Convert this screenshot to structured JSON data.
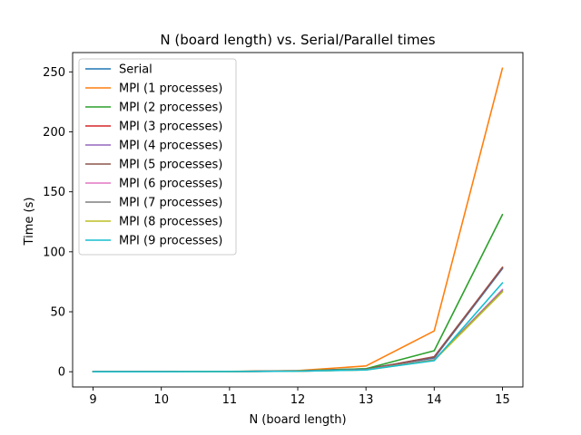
{
  "chart_data": {
    "type": "line",
    "title": "N (board length) vs. Serial/Parallel times",
    "xlabel": "N (board length)",
    "ylabel": "Time (s)",
    "x": [
      9,
      10,
      11,
      12,
      13,
      14,
      15
    ],
    "xticks": [
      "9",
      "10",
      "11",
      "12",
      "13",
      "14",
      "15"
    ],
    "yticks": [
      "0",
      "50",
      "100",
      "150",
      "200",
      "250"
    ],
    "xlim": [
      8.7,
      15.3
    ],
    "ylim": [
      -12.7,
      266.1
    ],
    "grid": false,
    "legend_position": "top-left",
    "series": [
      {
        "name": "Serial",
        "color": "#1f77b4",
        "values": [
          0.01,
          0.04,
          0.2,
          0.9,
          2.5,
          11.5,
          86
        ]
      },
      {
        "name": "MPI (1 processes)",
        "color": "#ff7f0e",
        "values": [
          0.02,
          0.1,
          0.3,
          1.0,
          4.8,
          34,
          253
        ]
      },
      {
        "name": "MPI (2 processes)",
        "color": "#2ca02c",
        "values": [
          0.01,
          0.05,
          0.2,
          0.7,
          2.5,
          17.5,
          131
        ]
      },
      {
        "name": "MPI (3 processes)",
        "color": "#d62728",
        "values": [
          0.01,
          0.04,
          0.2,
          0.6,
          1.9,
          12.5,
          87
        ]
      },
      {
        "name": "MPI (4 processes)",
        "color": "#9467bd",
        "values": [
          0.01,
          0.04,
          0.2,
          0.6,
          1.9,
          12.2,
          86.5
        ]
      },
      {
        "name": "MPI (5 processes)",
        "color": "#8c564b",
        "values": [
          0.01,
          0.04,
          0.2,
          0.6,
          1.9,
          12.3,
          86.8
        ]
      },
      {
        "name": "MPI (6 processes)",
        "color": "#e377c2",
        "values": [
          0.01,
          0.04,
          0.2,
          0.5,
          1.6,
          10.0,
          68.5
        ]
      },
      {
        "name": "MPI (7 processes)",
        "color": "#7f7f7f",
        "values": [
          0.01,
          0.04,
          0.2,
          0.5,
          1.6,
          9.8,
          67.5
        ]
      },
      {
        "name": "MPI (8 processes)",
        "color": "#bcbd22",
        "values": [
          0.01,
          0.04,
          0.2,
          0.5,
          1.5,
          9.5,
          66.5
        ]
      },
      {
        "name": "MPI (9 processes)",
        "color": "#17becf",
        "values": [
          0.01,
          0.04,
          0.2,
          0.5,
          1.5,
          9.2,
          74
        ]
      }
    ]
  }
}
